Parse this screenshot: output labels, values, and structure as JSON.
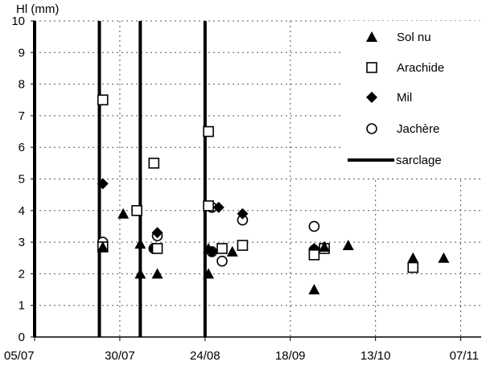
{
  "chart_data": {
    "type": "scatter",
    "title": "",
    "ylabel": "Hl (mm)",
    "xlabel": "",
    "ylim": [
      0,
      10
    ],
    "yticks": [
      0,
      1,
      2,
      3,
      4,
      5,
      6,
      7,
      8,
      9,
      10
    ],
    "xlim": [
      "2000-07-05",
      "2000-11-13"
    ],
    "xticks": [
      {
        "date": "2000-07-05",
        "label": "05/07"
      },
      {
        "date": "2000-07-30",
        "label": "30/07"
      },
      {
        "date": "2000-08-24",
        "label": "24/08"
      },
      {
        "date": "2000-09-18",
        "label": "18/09"
      },
      {
        "date": "2000-10-13",
        "label": "13/10"
      },
      {
        "date": "2000-11-07",
        "label": "07/11"
      }
    ],
    "grid": true,
    "legend_position": "top-right",
    "sarclage_dates": [
      "2000-07-05",
      "2000-07-24",
      "2000-08-05",
      "2000-08-24"
    ],
    "series": [
      {
        "name": "Sol nu",
        "marker": "triangle",
        "points": [
          {
            "x": "2000-07-25",
            "y": 2.85
          },
          {
            "x": "2000-07-31",
            "y": 3.9
          },
          {
            "x": "2000-08-05",
            "y": 2.0
          },
          {
            "x": "2000-08-05",
            "y": 2.95
          },
          {
            "x": "2000-08-10",
            "y": 2.0
          },
          {
            "x": "2000-08-25",
            "y": 2.0
          },
          {
            "x": "2000-08-25",
            "y": 2.8
          },
          {
            "x": "2000-09-01",
            "y": 2.7
          },
          {
            "x": "2000-09-25",
            "y": 1.5
          },
          {
            "x": "2000-09-28",
            "y": 2.85
          },
          {
            "x": "2000-10-05",
            "y": 2.9
          },
          {
            "x": "2000-10-24",
            "y": 2.5
          },
          {
            "x": "2000-11-02",
            "y": 2.5
          }
        ]
      },
      {
        "name": "Arachide",
        "marker": "square-open",
        "points": [
          {
            "x": "2000-07-25",
            "y": 7.5
          },
          {
            "x": "2000-07-25",
            "y": 2.85
          },
          {
            "x": "2000-08-04",
            "y": 4.0
          },
          {
            "x": "2000-08-09",
            "y": 5.5
          },
          {
            "x": "2000-08-10",
            "y": 2.8
          },
          {
            "x": "2000-08-25",
            "y": 6.5
          },
          {
            "x": "2000-08-25",
            "y": 4.15
          },
          {
            "x": "2000-08-29",
            "y": 2.8
          },
          {
            "x": "2000-09-04",
            "y": 2.9
          },
          {
            "x": "2000-09-25",
            "y": 2.6
          },
          {
            "x": "2000-09-28",
            "y": 2.8
          },
          {
            "x": "2000-10-24",
            "y": 2.2
          }
        ]
      },
      {
        "name": "Mil",
        "marker": "diamond",
        "points": [
          {
            "x": "2000-07-25",
            "y": 4.85
          },
          {
            "x": "2000-08-04",
            "y": 4.0
          },
          {
            "x": "2000-08-09",
            "y": 2.8
          },
          {
            "x": "2000-08-10",
            "y": 3.3
          },
          {
            "x": "2000-08-26",
            "y": 2.7
          },
          {
            "x": "2000-08-28",
            "y": 4.1
          },
          {
            "x": "2000-09-04",
            "y": 3.9
          },
          {
            "x": "2000-09-25",
            "y": 2.8
          },
          {
            "x": "2000-09-28",
            "y": 2.85
          }
        ]
      },
      {
        "name": "Jachère",
        "marker": "circle-open",
        "points": [
          {
            "x": "2000-07-25",
            "y": 3.0
          },
          {
            "x": "2000-08-09",
            "y": 2.8
          },
          {
            "x": "2000-08-10",
            "y": 3.2
          },
          {
            "x": "2000-08-26",
            "y": 4.1
          },
          {
            "x": "2000-08-26",
            "y": 2.7
          },
          {
            "x": "2000-08-29",
            "y": 2.4
          },
          {
            "x": "2000-09-04",
            "y": 3.7
          },
          {
            "x": "2000-09-25",
            "y": 3.5
          },
          {
            "x": "2000-09-25",
            "y": 2.75
          }
        ]
      }
    ],
    "legend": [
      {
        "label": "Sol nu",
        "marker": "triangle"
      },
      {
        "label": "Arachide",
        "marker": "square-open"
      },
      {
        "label": "Mil",
        "marker": "diamond"
      },
      {
        "label": "Jachère",
        "marker": "circle-open"
      },
      {
        "label": "sarclage",
        "marker": "line"
      }
    ]
  }
}
